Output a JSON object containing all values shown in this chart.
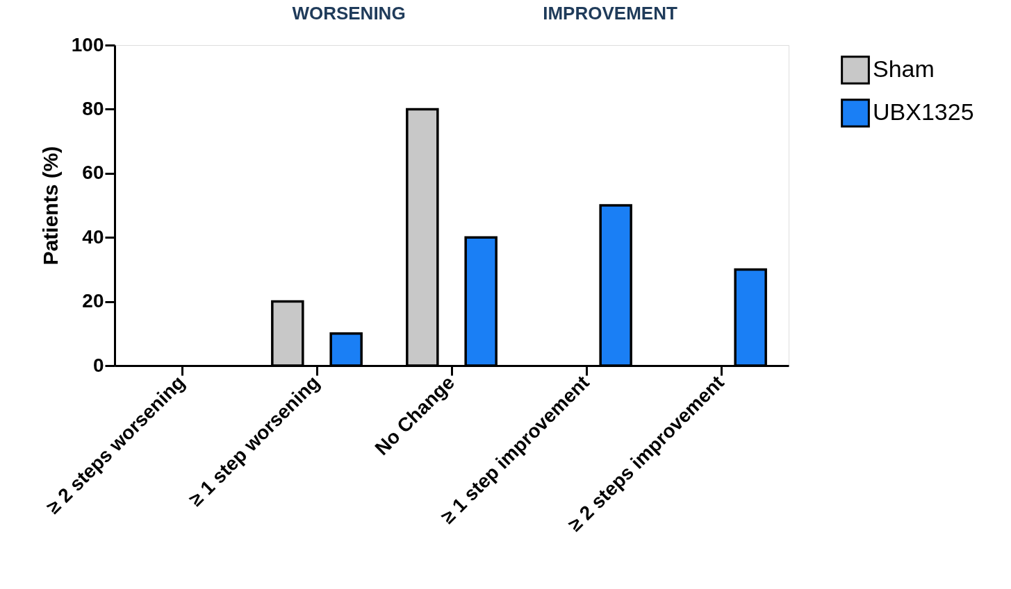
{
  "chart_data": {
    "type": "bar",
    "ylabel": "Patients (%)",
    "categories": [
      "≥ 2 steps worsening",
      "≥ 1 step worsening",
      "No Change",
      "≥ 1 step improvement",
      "≥ 2 steps improvement"
    ],
    "series": [
      {
        "name": "Sham",
        "color": "#c8c8c8",
        "values": [
          0,
          20,
          80,
          0,
          0
        ]
      },
      {
        "name": "UBX1325",
        "color": "#1a7ff5",
        "values": [
          0,
          10,
          40,
          50,
          30
        ]
      }
    ],
    "ylim": [
      0,
      100
    ],
    "yticks": [
      0,
      20,
      40,
      60,
      80,
      100
    ],
    "grid": false,
    "legend": "top right",
    "annotations": [
      "WORSENING",
      "IMPROVEMENT"
    ]
  }
}
